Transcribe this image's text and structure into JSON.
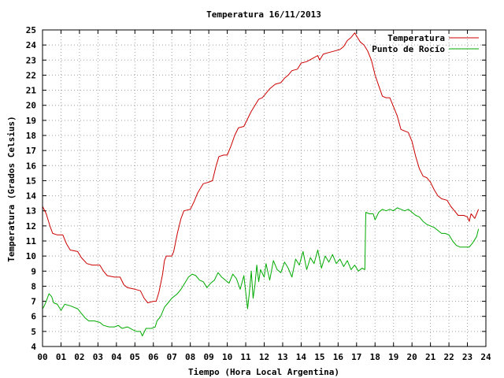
{
  "chart_data": {
    "type": "line",
    "title": "Temperatura 16/11/2013",
    "xlabel": "Tiempo (Hora Local Argentina)",
    "ylabel": "Temperatura (Grados Celsius)",
    "xlim": [
      0,
      24
    ],
    "ylim": [
      4,
      25
    ],
    "x_ticks": [
      "00",
      "01",
      "02",
      "03",
      "04",
      "05",
      "06",
      "07",
      "08",
      "09",
      "10",
      "11",
      "12",
      "13",
      "14",
      "15",
      "16",
      "17",
      "18",
      "19",
      "20",
      "21",
      "22",
      "23",
      "24"
    ],
    "y_ticks": [
      4,
      5,
      6,
      7,
      8,
      9,
      10,
      11,
      12,
      13,
      14,
      15,
      16,
      17,
      18,
      19,
      20,
      21,
      22,
      23,
      24,
      25
    ],
    "grid": true,
    "grid_style": "dotted",
    "legend_position": "top-right",
    "series": [
      {
        "name": "Temperatura",
        "color": "#cc0000",
        "points": [
          [
            0.0,
            13.3
          ],
          [
            0.2,
            12.8
          ],
          [
            0.4,
            12.0
          ],
          [
            0.55,
            11.5
          ],
          [
            0.8,
            11.4
          ],
          [
            1.1,
            11.4
          ],
          [
            1.3,
            10.8
          ],
          [
            1.5,
            10.4
          ],
          [
            1.9,
            10.3
          ],
          [
            2.1,
            9.9
          ],
          [
            2.4,
            9.5
          ],
          [
            2.7,
            9.4
          ],
          [
            3.1,
            9.4
          ],
          [
            3.3,
            9.0
          ],
          [
            3.5,
            8.7
          ],
          [
            3.9,
            8.6
          ],
          [
            4.2,
            8.6
          ],
          [
            4.4,
            8.1
          ],
          [
            4.6,
            7.9
          ],
          [
            5.0,
            7.8
          ],
          [
            5.3,
            7.7
          ],
          [
            5.5,
            7.2
          ],
          [
            5.7,
            6.9
          ],
          [
            6.0,
            7.0
          ],
          [
            6.15,
            7.0
          ],
          [
            6.3,
            7.6
          ],
          [
            6.5,
            8.8
          ],
          [
            6.6,
            9.7
          ],
          [
            6.7,
            10.0
          ],
          [
            7.0,
            10.0
          ],
          [
            7.1,
            10.3
          ],
          [
            7.3,
            11.5
          ],
          [
            7.5,
            12.5
          ],
          [
            7.65,
            13.0
          ],
          [
            8.0,
            13.1
          ],
          [
            8.2,
            13.6
          ],
          [
            8.4,
            14.2
          ],
          [
            8.7,
            14.8
          ],
          [
            9.0,
            14.9
          ],
          [
            9.2,
            15.0
          ],
          [
            9.4,
            16.0
          ],
          [
            9.55,
            16.6
          ],
          [
            9.8,
            16.7
          ],
          [
            10.0,
            16.7
          ],
          [
            10.2,
            17.3
          ],
          [
            10.4,
            18.0
          ],
          [
            10.6,
            18.5
          ],
          [
            10.9,
            18.6
          ],
          [
            11.1,
            19.1
          ],
          [
            11.3,
            19.6
          ],
          [
            11.5,
            20.0
          ],
          [
            11.7,
            20.4
          ],
          [
            11.9,
            20.5
          ],
          [
            12.1,
            20.8
          ],
          [
            12.3,
            21.1
          ],
          [
            12.6,
            21.4
          ],
          [
            12.9,
            21.5
          ],
          [
            13.1,
            21.8
          ],
          [
            13.3,
            22.0
          ],
          [
            13.5,
            22.3
          ],
          [
            13.8,
            22.4
          ],
          [
            14.0,
            22.8
          ],
          [
            14.3,
            22.9
          ],
          [
            14.6,
            23.1
          ],
          [
            14.9,
            23.3
          ],
          [
            15.0,
            23.0
          ],
          [
            15.2,
            23.4
          ],
          [
            15.5,
            23.5
          ],
          [
            15.8,
            23.6
          ],
          [
            16.1,
            23.7
          ],
          [
            16.3,
            23.9
          ],
          [
            16.5,
            24.3
          ],
          [
            16.7,
            24.5
          ],
          [
            16.9,
            24.8
          ],
          [
            17.1,
            24.4
          ],
          [
            17.2,
            24.2
          ],
          [
            17.4,
            24.0
          ],
          [
            17.6,
            23.6
          ],
          [
            17.8,
            23.0
          ],
          [
            18.0,
            22.0
          ],
          [
            18.2,
            21.3
          ],
          [
            18.4,
            20.6
          ],
          [
            18.6,
            20.5
          ],
          [
            18.8,
            20.5
          ],
          [
            19.0,
            19.9
          ],
          [
            19.2,
            19.3
          ],
          [
            19.4,
            18.4
          ],
          [
            19.6,
            18.3
          ],
          [
            19.8,
            18.2
          ],
          [
            20.0,
            17.6
          ],
          [
            20.2,
            16.6
          ],
          [
            20.4,
            15.8
          ],
          [
            20.6,
            15.3
          ],
          [
            20.8,
            15.2
          ],
          [
            21.0,
            14.9
          ],
          [
            21.2,
            14.4
          ],
          [
            21.4,
            14.0
          ],
          [
            21.6,
            13.8
          ],
          [
            21.9,
            13.7
          ],
          [
            22.1,
            13.3
          ],
          [
            22.3,
            13.0
          ],
          [
            22.5,
            12.7
          ],
          [
            22.8,
            12.7
          ],
          [
            23.0,
            12.6
          ],
          [
            23.1,
            12.3
          ],
          [
            23.2,
            12.8
          ],
          [
            23.4,
            12.5
          ],
          [
            23.5,
            12.8
          ],
          [
            23.6,
            13.1
          ]
        ]
      },
      {
        "name": "Punto de Rocío",
        "color": "#00aa00",
        "points": [
          [
            0.0,
            6.5
          ],
          [
            0.1,
            6.7
          ],
          [
            0.2,
            7.0
          ],
          [
            0.35,
            7.5
          ],
          [
            0.5,
            7.3
          ],
          [
            0.6,
            6.9
          ],
          [
            0.8,
            6.8
          ],
          [
            1.0,
            6.4
          ],
          [
            1.2,
            6.8
          ],
          [
            1.5,
            6.7
          ],
          [
            1.9,
            6.5
          ],
          [
            2.1,
            6.2
          ],
          [
            2.3,
            5.9
          ],
          [
            2.5,
            5.7
          ],
          [
            2.8,
            5.7
          ],
          [
            3.1,
            5.6
          ],
          [
            3.3,
            5.4
          ],
          [
            3.6,
            5.3
          ],
          [
            3.9,
            5.3
          ],
          [
            4.1,
            5.4
          ],
          [
            4.3,
            5.2
          ],
          [
            4.6,
            5.3
          ],
          [
            4.9,
            5.1
          ],
          [
            5.1,
            5.0
          ],
          [
            5.3,
            5.0
          ],
          [
            5.4,
            4.7
          ],
          [
            5.6,
            5.2
          ],
          [
            5.9,
            5.2
          ],
          [
            6.1,
            5.3
          ],
          [
            6.2,
            5.7
          ],
          [
            6.4,
            6.0
          ],
          [
            6.6,
            6.6
          ],
          [
            6.8,
            6.9
          ],
          [
            7.0,
            7.2
          ],
          [
            7.3,
            7.5
          ],
          [
            7.5,
            7.8
          ],
          [
            7.7,
            8.2
          ],
          [
            7.9,
            8.6
          ],
          [
            8.1,
            8.8
          ],
          [
            8.3,
            8.7
          ],
          [
            8.5,
            8.4
          ],
          [
            8.7,
            8.3
          ],
          [
            8.9,
            7.9
          ],
          [
            9.1,
            8.2
          ],
          [
            9.3,
            8.4
          ],
          [
            9.5,
            8.9
          ],
          [
            9.7,
            8.6
          ],
          [
            9.9,
            8.4
          ],
          [
            10.1,
            8.2
          ],
          [
            10.3,
            8.8
          ],
          [
            10.5,
            8.5
          ],
          [
            10.7,
            7.8
          ],
          [
            10.9,
            8.7
          ],
          [
            11.1,
            6.5
          ],
          [
            11.2,
            7.6
          ],
          [
            11.3,
            9.0
          ],
          [
            11.4,
            7.2
          ],
          [
            11.5,
            8.1
          ],
          [
            11.6,
            9.4
          ],
          [
            11.7,
            8.3
          ],
          [
            11.8,
            9.1
          ],
          [
            12.0,
            8.6
          ],
          [
            12.1,
            9.5
          ],
          [
            12.3,
            8.4
          ],
          [
            12.5,
            9.7
          ],
          [
            12.7,
            9.1
          ],
          [
            12.9,
            8.9
          ],
          [
            13.1,
            9.6
          ],
          [
            13.3,
            9.2
          ],
          [
            13.5,
            8.6
          ],
          [
            13.7,
            9.8
          ],
          [
            13.9,
            9.4
          ],
          [
            14.1,
            10.3
          ],
          [
            14.3,
            9.1
          ],
          [
            14.5,
            9.9
          ],
          [
            14.7,
            9.5
          ],
          [
            14.9,
            10.4
          ],
          [
            15.1,
            9.2
          ],
          [
            15.3,
            10.0
          ],
          [
            15.5,
            9.6
          ],
          [
            15.7,
            10.1
          ],
          [
            15.9,
            9.5
          ],
          [
            16.1,
            9.8
          ],
          [
            16.3,
            9.3
          ],
          [
            16.5,
            9.7
          ],
          [
            16.7,
            9.1
          ],
          [
            16.9,
            9.4
          ],
          [
            17.1,
            9.0
          ],
          [
            17.3,
            9.2
          ],
          [
            17.45,
            9.1
          ],
          [
            17.5,
            12.9
          ],
          [
            17.7,
            12.8
          ],
          [
            17.9,
            12.8
          ],
          [
            18.0,
            12.4
          ],
          [
            18.2,
            12.9
          ],
          [
            18.4,
            13.1
          ],
          [
            18.6,
            13.0
          ],
          [
            18.8,
            13.1
          ],
          [
            19.0,
            13.0
          ],
          [
            19.2,
            13.2
          ],
          [
            19.4,
            13.1
          ],
          [
            19.6,
            13.0
          ],
          [
            19.8,
            13.1
          ],
          [
            20.0,
            12.9
          ],
          [
            20.2,
            12.7
          ],
          [
            20.4,
            12.6
          ],
          [
            20.6,
            12.3
          ],
          [
            20.8,
            12.1
          ],
          [
            21.0,
            12.0
          ],
          [
            21.2,
            11.9
          ],
          [
            21.4,
            11.7
          ],
          [
            21.6,
            11.5
          ],
          [
            21.8,
            11.5
          ],
          [
            22.0,
            11.4
          ],
          [
            22.2,
            11.0
          ],
          [
            22.4,
            10.7
          ],
          [
            22.6,
            10.6
          ],
          [
            22.9,
            10.6
          ],
          [
            23.1,
            10.6
          ],
          [
            23.3,
            10.9
          ],
          [
            23.5,
            11.3
          ],
          [
            23.6,
            11.8
          ]
        ]
      }
    ]
  }
}
